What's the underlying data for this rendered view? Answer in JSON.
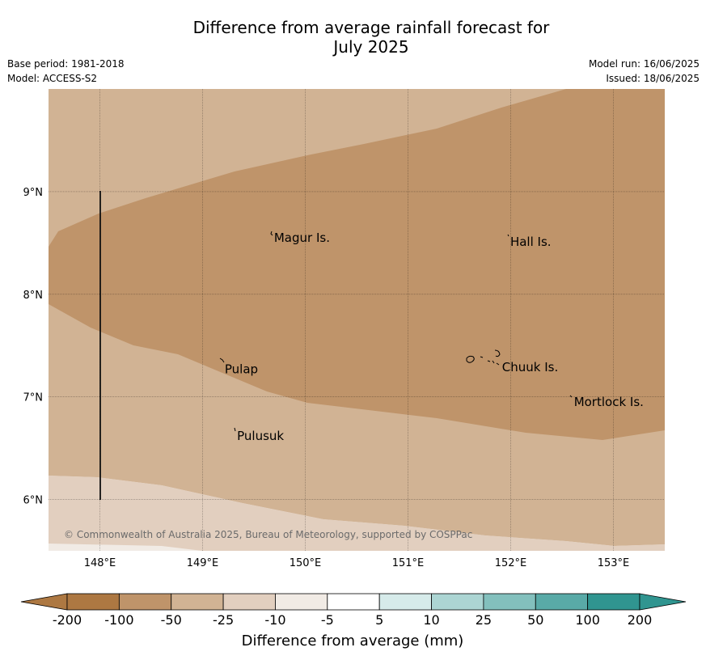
{
  "title": "Difference from average rainfall forecast for July 2025",
  "title_line1": "Difference from average rainfall forecast for",
  "title_line2": "July 2025",
  "base_period": "Base period: 1981-2018",
  "model": "Model: ACCESS-S2",
  "model_run": "Model run: 16/06/2025",
  "issued": "Issued: 18/06/2025",
  "copyright": "© Commonwealth of Australia 2025, Bureau of Meteorology, supported by COSPPac",
  "lon_ticks": [
    "148°E",
    "149°E",
    "150°E",
    "151°E",
    "152°E",
    "153°E"
  ],
  "lat_ticks": [
    "9°N",
    "8°N",
    "7°N",
    "6°N"
  ],
  "map_extent": {
    "lon_min": 147.5,
    "lon_max": 153.5,
    "lat_min": 5.5,
    "lat_max": 10.0
  },
  "places": [
    {
      "name": "Magur Is.",
      "lon": 149.68,
      "lat": 8.55
    },
    {
      "name": "Hall Is.",
      "lon": 151.98,
      "lat": 8.51
    },
    {
      "name": "Pulap",
      "lon": 149.2,
      "lat": 7.27
    },
    {
      "name": "Chuuk Is.",
      "lon": 151.9,
      "lat": 7.29
    },
    {
      "name": "Mortlock Is.",
      "lon": 152.6,
      "lat": 6.95
    },
    {
      "name": "Pulusuk",
      "lon": 149.32,
      "lat": 6.62
    }
  ],
  "colors": {
    "dry_-200": "#ad7842",
    "dry_-100": "#bf946a",
    "dry_-50": "#d1b394",
    "dry_-25": "#e2cfbf",
    "dry_-10": "#f1ebe5",
    "neutral": "#ffffff",
    "wet_5": "#d6ebea",
    "wet_10": "#acd5d3",
    "wet_25": "#83c0bd",
    "wet_50": "#59aaa7",
    "wet_100": "#309590"
  },
  "colorbar": {
    "ticks": [
      "-200",
      "-100",
      "-50",
      "-25",
      "-10",
      "-5",
      "5",
      "10",
      "25",
      "50",
      "100",
      "200"
    ],
    "label": "Difference from average (mm)"
  }
}
